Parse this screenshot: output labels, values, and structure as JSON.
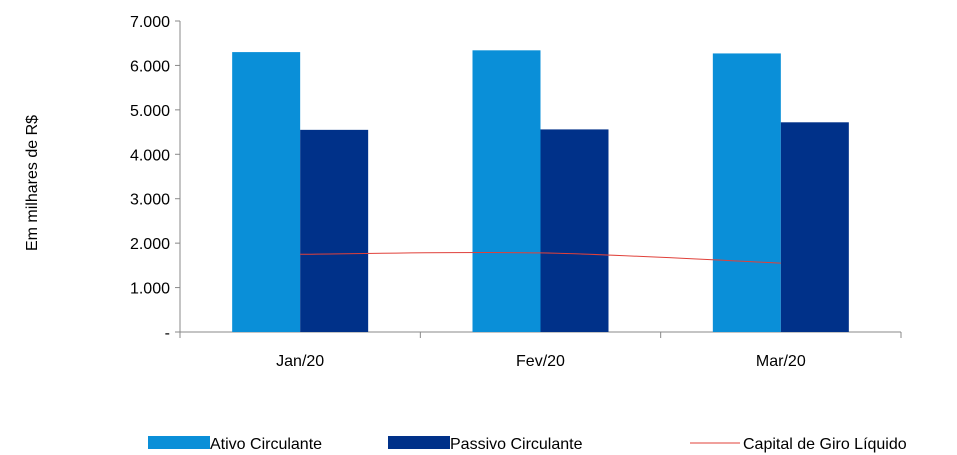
{
  "chart_data": {
    "type": "bar",
    "categories": [
      "Jan/20",
      "Fev/20",
      "Mar/20"
    ],
    "series": [
      {
        "name": "Ativo Circulante",
        "kind": "bar",
        "color": "#0a8fd8",
        "values": [
          6300,
          6340,
          6270
        ]
      },
      {
        "name": "Passivo Circulante",
        "kind": "bar",
        "color": "#003189",
        "values": [
          4550,
          4560,
          4720
        ]
      },
      {
        "name": "Capital de Giro Líquido",
        "kind": "line",
        "color": "#e0413a",
        "values": [
          1750,
          1780,
          1550
        ]
      }
    ],
    "ylabel": "Em milhares de R$",
    "ylim": [
      0,
      7000
    ],
    "y_ticks": [
      {
        "value": 0,
        "label": "-"
      },
      {
        "value": 1000,
        "label": "1.000"
      },
      {
        "value": 2000,
        "label": "2.000"
      },
      {
        "value": 3000,
        "label": "3.000"
      },
      {
        "value": 4000,
        "label": "4.000"
      },
      {
        "value": 5000,
        "label": "5.000"
      },
      {
        "value": 6000,
        "label": "6.000"
      },
      {
        "value": 7000,
        "label": "7.000"
      }
    ],
    "grid": false,
    "legend_position": "bottom"
  }
}
